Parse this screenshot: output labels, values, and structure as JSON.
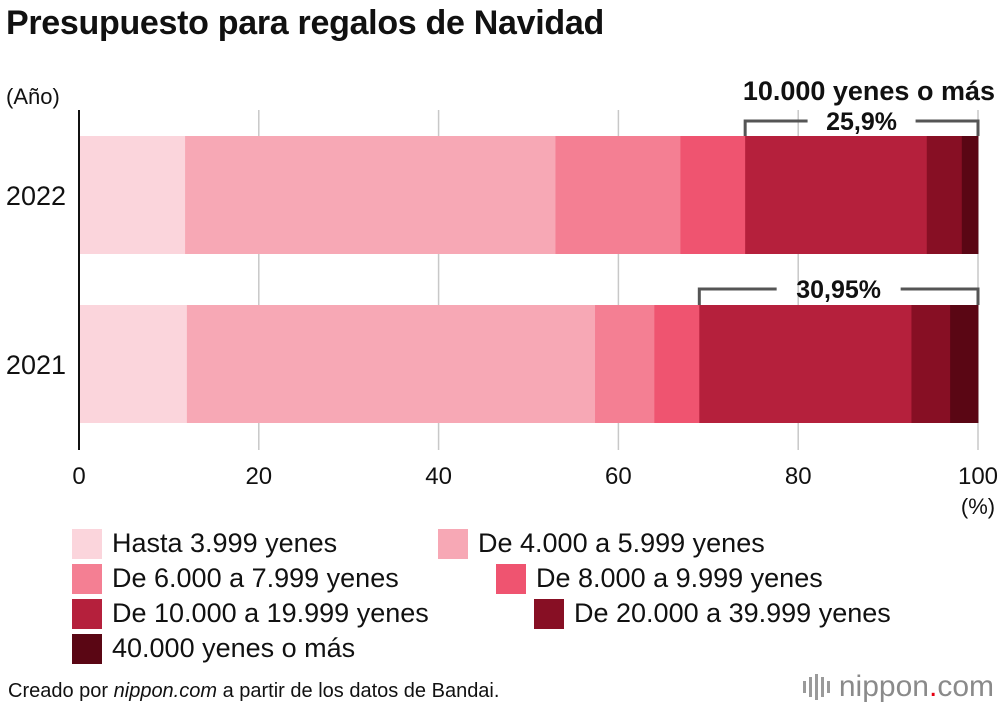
{
  "title": "Presupuesto para regalos de Navidad",
  "chart_data": {
    "type": "bar",
    "orientation": "horizontal",
    "stacked": true,
    "title": "Presupuesto para regalos de Navidad",
    "ylabel": "(Año)",
    "xlabel": "(%)",
    "xlim": [
      0,
      100
    ],
    "xticks": [
      0,
      20,
      40,
      60,
      80,
      100
    ],
    "grid": true,
    "categories": [
      "2022",
      "2021"
    ],
    "series": [
      {
        "name": "Hasta 3.999 yenes",
        "color": "#fbd5dc",
        "values": [
          11.8,
          12.0
        ]
      },
      {
        "name": "De 4.000 a 5.999 yenes",
        "color": "#f7a8b5",
        "values": [
          41.2,
          45.4
        ]
      },
      {
        "name": "De 6.000 a 7.999 yenes",
        "color": "#f47f93",
        "values": [
          13.9,
          6.6
        ]
      },
      {
        "name": "De 8.000 a 9.999 yenes",
        "color": "#ef5470",
        "values": [
          7.2,
          5.0
        ]
      },
      {
        "name": "De 10.000 a 19.999 yenes",
        "color": "#b5203c",
        "values": [
          20.2,
          23.6
        ]
      },
      {
        "name": "De 20.000 a 39.999 yenes",
        "color": "#870f24",
        "values": [
          3.9,
          4.3
        ]
      },
      {
        "name": "40.000 yenes o más",
        "color": "#5a0614",
        "values": [
          1.8,
          3.1
        ]
      }
    ],
    "annotation_title": "10.000 yenes o más",
    "annotations": [
      {
        "category": "2022",
        "label": "25,9%",
        "from": 74.1
      },
      {
        "category": "2021",
        "label": "30,95%",
        "from": 69.0
      }
    ]
  },
  "footer": {
    "prefix": "Creado por ",
    "site": "nippon.com",
    "suffix": " a partir de los datos de Bandai."
  },
  "logo": {
    "name": "nippon",
    "dot": ".",
    "tld": "com"
  }
}
